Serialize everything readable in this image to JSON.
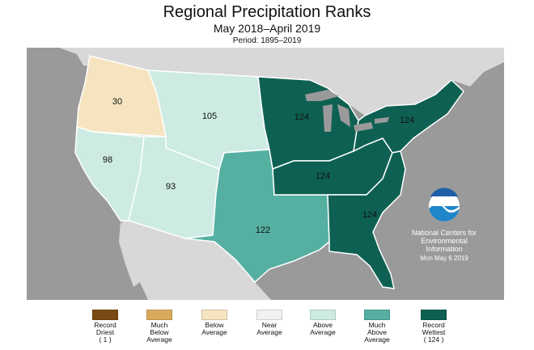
{
  "title": "Regional Precipitation Ranks",
  "subtitle": "May 2018–April 2019",
  "period": "Period: 1895–2019",
  "colors": {
    "ocean": "#9a9a9a",
    "land": "#d8d8d8",
    "border": "#ffffff",
    "below_average": "#f6e4c0",
    "above_average": "#cdebe3",
    "much_above_average": "#55b0a2",
    "record_wettest": "#0e6152"
  },
  "regions": [
    {
      "name": "Northwest",
      "rank": "30",
      "category": "below_average"
    },
    {
      "name": "West North Central",
      "rank": "105",
      "category": "above_average"
    },
    {
      "name": "West",
      "rank": "98",
      "category": "above_average"
    },
    {
      "name": "Southwest",
      "rank": "93",
      "category": "above_average"
    },
    {
      "name": "South",
      "rank": "122",
      "category": "much_above_average"
    },
    {
      "name": "Upper Midwest",
      "rank": "124",
      "category": "record_wettest"
    },
    {
      "name": "Ohio Valley",
      "rank": "124",
      "category": "record_wettest"
    },
    {
      "name": "Northeast",
      "rank": "124",
      "category": "record_wettest"
    },
    {
      "name": "Southeast",
      "rank": "124",
      "category": "record_wettest"
    }
  ],
  "credit": {
    "logo_text": "NOAA",
    "line1": "National Centers for",
    "line2": "Environmental",
    "line3": "Information",
    "date": "Mon May  6 2019"
  },
  "legend": [
    {
      "label": "Record\nDriest\n( 1 )",
      "color": "#7a4a14"
    },
    {
      "label": "Much\nBelow\nAverage",
      "color": "#d9aa5c"
    },
    {
      "label": "Below\nAverage",
      "color": "#f6e4c0"
    },
    {
      "label": "Near\nAverage",
      "color": "#f2f2f2"
    },
    {
      "label": "Above\nAverage",
      "color": "#cdebe3"
    },
    {
      "label": "Much\nAbove\nAverage",
      "color": "#55b0a2"
    },
    {
      "label": "Record\nWettest\n( 124 )",
      "color": "#0e6152"
    }
  ]
}
